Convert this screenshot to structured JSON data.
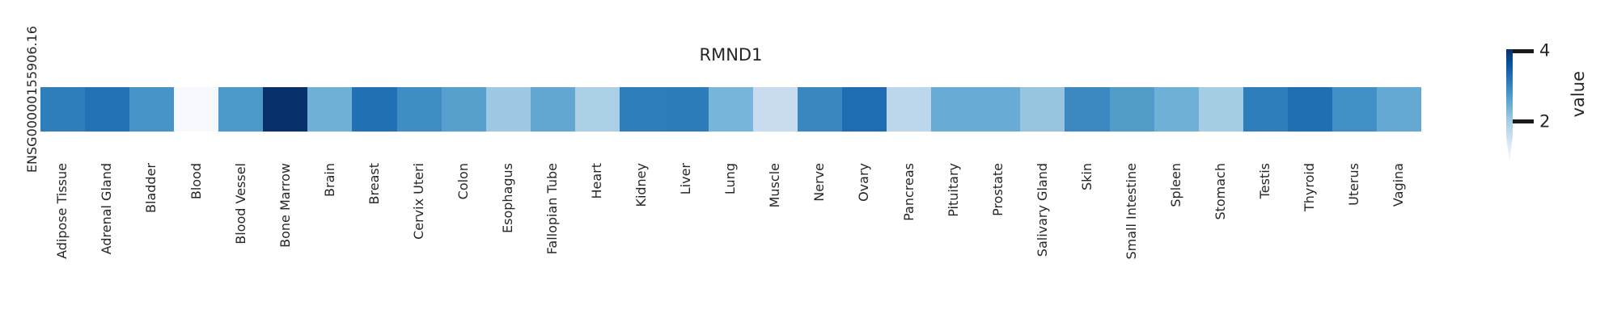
{
  "figure": {
    "title": "RMND1",
    "row_label": "ENSG00000155906.16",
    "colorbar_label": "value",
    "text_color": "#262626",
    "background_color": "#ffffff"
  },
  "chart_data": {
    "type": "heatmap",
    "title": "RMND1",
    "rows": [
      "ENSG00000155906.16"
    ],
    "categories": [
      "Adipose Tissue",
      "Adrenal Gland",
      "Bladder",
      "Blood",
      "Blood Vessel",
      "Bone Marrow",
      "Brain",
      "Breast",
      "Cervix Uteri",
      "Colon",
      "Esophagus",
      "Fallopian Tube",
      "Heart",
      "Kidney",
      "Liver",
      "Lung",
      "Muscle",
      "Nerve",
      "Ovary",
      "Pancreas",
      "Pituitary",
      "Prostate",
      "Salivary Gland",
      "Skin",
      "Small Intestine",
      "Spleen",
      "Stomach",
      "Testis",
      "Thyroid",
      "Uterus",
      "Vagina"
    ],
    "values": [
      [
        3.0,
        3.1,
        2.7,
        0.9,
        2.7,
        4.05,
        2.3,
        3.1,
        2.8,
        2.6,
        1.9,
        2.4,
        1.8,
        3.0,
        3.0,
        2.2,
        1.5,
        2.9,
        3.2,
        1.7,
        2.4,
        2.4,
        1.9,
        2.9,
        2.7,
        2.3,
        1.9,
        3.0,
        3.2,
        2.8,
        2.4
      ]
    ],
    "cell_colors": [
      [
        "#2e7ebc",
        "#2272b6",
        "#4694c8",
        "#f6faff",
        "#4d9aca",
        "#08306b",
        "#6fb0d6",
        "#2171b5",
        "#3e8ec4",
        "#57a0cd",
        "#9cc8e1",
        "#61a7d2",
        "#abd0e6",
        "#2e7ebc",
        "#2d7dbb",
        "#77b5da",
        "#c9dcef",
        "#3a87c0",
        "#1e6db3",
        "#bcd6ec",
        "#68abd4",
        "#68abd4",
        "#97c5df",
        "#3c89c1",
        "#529cca",
        "#6fb0d6",
        "#a5cde4",
        "#2e7ebc",
        "#1f6fb3",
        "#4191c6",
        "#64a9d3"
      ]
    ],
    "colormap": "Blues",
    "colormap_stops_top_to_bottom": [
      "#08306b",
      "#08519c",
      "#2171b5",
      "#4292c6",
      "#6baed6",
      "#9ecae1",
      "#c6dbef",
      "#deebf7",
      "#f7fbff"
    ],
    "value_range": [
      0.88,
      4.05
    ],
    "colorbar_ticks": [
      "4",
      "2"
    ],
    "colorbar_label": "value",
    "legend_position": "right",
    "grid": false
  }
}
